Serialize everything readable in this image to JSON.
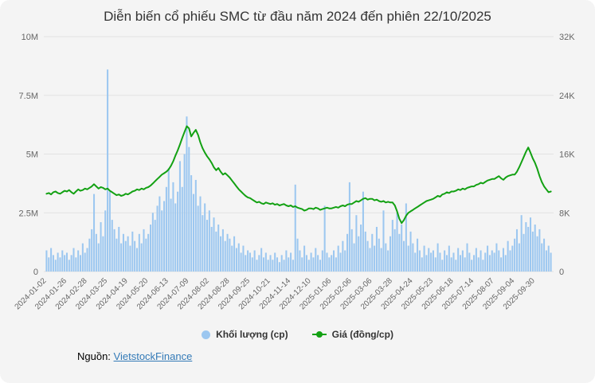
{
  "title": "Diễn biến cổ phiếu SMC từ đầu năm 2024 đến phiên 22/10/2025",
  "source": {
    "prefix": "Nguồn:",
    "link_text": "VietstockFinance"
  },
  "colors": {
    "card_bg": "#f4f4f4",
    "grid": "#e2e2e2",
    "axis_text": "#666666",
    "title_text": "#333333",
    "volume": "#9cc7f0",
    "price": "#13a113",
    "link": "#337ab7"
  },
  "chart_data": {
    "type": "combo",
    "title": "Diễn biến cổ phiếu SMC từ đầu năm 2024 đến phiên 22/10/2025",
    "legend_position": "bottom",
    "grid": true,
    "tick_every": 9,
    "x_tick_labels": [
      "2024-01-02",
      "2024-01-26",
      "2024-02-28",
      "2024-03-25",
      "2024-04-19",
      "2024-05-20",
      "2024-06-13",
      "2024-07-09",
      "2024-08-02",
      "2024-08-28",
      "2024-09-25",
      "2024-10-21",
      "2024-11-14",
      "2024-12-10",
      "2025-01-06",
      "2025-02-06",
      "2025-03-06",
      "2025-03-28",
      "2025-04-24",
      "2025-05-23",
      "2025-06-18",
      "2025-07-14",
      "2025-08-07",
      "2025-09-04",
      "2025-09-30"
    ],
    "left_axis": {
      "unit": "M",
      "max": 10,
      "tick_labels": [
        "0",
        "2.5M",
        "5M",
        "7.5M",
        "10M"
      ]
    },
    "right_axis": {
      "unit": "K",
      "max": 32,
      "tick_labels": [
        "0",
        "8K",
        "16K",
        "24K",
        "32K"
      ]
    },
    "series": [
      {
        "name": "Khối lượng (cp)",
        "type": "bar",
        "axis": "left",
        "unit": "M cp",
        "color": "#9cc7f0",
        "values": [
          0.9,
          0.6,
          1.0,
          0.7,
          0.5,
          0.8,
          0.6,
          0.9,
          0.7,
          0.8,
          0.5,
          0.7,
          1.0,
          0.6,
          0.9,
          0.7,
          1.2,
          0.8,
          1.0,
          1.4,
          1.8,
          3.3,
          1.6,
          1.2,
          2.1,
          1.5,
          2.6,
          8.6,
          3.4,
          2.2,
          1.8,
          1.4,
          1.9,
          1.2,
          1.6,
          1.3,
          1.5,
          1.1,
          1.7,
          1.3,
          1.0,
          1.6,
          1.2,
          1.8,
          1.4,
          1.6,
          2.0,
          2.5,
          2.2,
          2.8,
          3.2,
          2.6,
          3.0,
          3.6,
          4.4,
          3.1,
          3.8,
          2.9,
          3.4,
          4.7,
          3.6,
          5.0,
          6.6,
          5.3,
          4.1,
          3.3,
          3.9,
          2.8,
          3.2,
          2.4,
          2.9,
          2.2,
          2.6,
          1.9,
          2.3,
          1.7,
          2.0,
          1.5,
          1.8,
          1.3,
          1.6,
          1.4,
          1.1,
          1.5,
          1.0,
          1.2,
          0.8,
          1.1,
          0.7,
          0.9,
          0.8,
          0.6,
          0.9,
          0.5,
          0.7,
          1.0,
          0.6,
          0.8,
          0.5,
          0.7,
          0.5,
          0.8,
          0.6,
          0.4,
          0.7,
          0.5,
          0.9,
          0.6,
          0.8,
          0.5,
          3.7,
          1.4,
          0.9,
          0.6,
          1.1,
          0.7,
          0.5,
          0.8,
          0.6,
          1.0,
          0.7,
          0.5,
          0.9,
          2.8,
          0.8,
          0.6,
          0.7,
          0.9,
          0.6,
          1.1,
          0.8,
          1.3,
          0.9,
          1.6,
          3.8,
          1.8,
          1.2,
          2.4,
          1.5,
          2.0,
          3.4,
          1.7,
          1.3,
          1.0,
          1.6,
          1.1,
          1.9,
          1.4,
          1.0,
          2.6,
          1.2,
          0.9,
          1.5,
          2.2,
          1.8,
          2.5,
          1.6,
          2.0,
          1.3,
          2.9,
          1.1,
          1.7,
          1.2,
          0.8,
          1.4,
          0.9,
          0.6,
          1.1,
          0.7,
          1.0,
          0.8,
          0.9,
          0.6,
          1.2,
          0.8,
          0.5,
          0.9,
          0.7,
          1.1,
          0.6,
          0.8,
          0.5,
          1.0,
          0.7,
          0.9,
          0.6,
          1.2,
          0.8,
          0.5,
          0.7,
          1.0,
          0.6,
          0.9,
          0.5,
          0.8,
          1.1,
          0.7,
          0.9,
          0.8,
          1.2,
          0.9,
          0.6,
          1.0,
          0.7,
          1.3,
          0.9,
          1.1,
          1.4,
          1.8,
          1.2,
          2.4,
          1.6,
          2.1,
          1.9,
          2.3,
          1.7,
          2.0,
          1.5,
          1.8,
          1.2,
          1.4,
          0.9,
          1.1,
          0.8
        ]
      },
      {
        "name": "Giá (đồng/cp)",
        "type": "line",
        "axis": "right",
        "unit": "K đồng/cp",
        "color": "#13a113",
        "values": [
          10.6,
          10.7,
          10.5,
          10.8,
          10.9,
          10.7,
          10.6,
          10.8,
          11.0,
          10.9,
          11.1,
          10.8,
          10.6,
          10.9,
          11.2,
          11.0,
          11.1,
          11.3,
          11.2,
          11.4,
          11.6,
          11.9,
          11.6,
          11.3,
          11.5,
          11.4,
          11.2,
          11.3,
          11.0,
          10.8,
          10.6,
          10.4,
          10.5,
          10.3,
          10.4,
          10.6,
          10.5,
          10.7,
          10.9,
          11.0,
          11.2,
          11.1,
          11.3,
          11.2,
          11.4,
          11.5,
          11.7,
          12.0,
          12.3,
          12.6,
          12.9,
          13.2,
          13.4,
          13.6,
          13.9,
          14.4,
          15.0,
          15.8,
          16.5,
          17.3,
          18.2,
          19.0,
          19.8,
          19.5,
          18.4,
          18.9,
          19.3,
          18.6,
          17.6,
          16.8,
          16.2,
          15.7,
          15.3,
          14.8,
          14.2,
          13.8,
          14.1,
          13.6,
          13.2,
          13.4,
          13.1,
          12.8,
          12.4,
          12.0,
          11.6,
          11.2,
          10.9,
          10.6,
          10.3,
          10.1,
          10.0,
          9.8,
          9.6,
          9.4,
          9.5,
          9.3,
          9.2,
          9.4,
          9.3,
          9.2,
          9.3,
          9.1,
          9.2,
          9.0,
          9.1,
          9.2,
          9.0,
          8.9,
          9.0,
          8.8,
          8.9,
          8.7,
          8.6,
          8.5,
          8.3,
          8.4,
          8.6,
          8.6,
          8.5,
          8.7,
          8.6,
          8.4,
          8.5,
          8.6,
          8.7,
          8.6,
          8.6,
          8.7,
          8.8,
          8.7,
          8.9,
          9.0,
          8.9,
          9.1,
          9.2,
          9.2,
          9.4,
          9.6,
          9.5,
          9.7,
          9.9,
          10.0,
          9.8,
          9.9,
          9.9,
          9.7,
          9.8,
          9.6,
          9.5,
          9.6,
          9.4,
          9.5,
          9.4,
          9.4,
          9.0,
          8.2,
          7.2,
          6.6,
          7.0,
          7.6,
          8.0,
          8.2,
          8.4,
          8.6,
          8.8,
          9.0,
          9.2,
          9.4,
          9.6,
          9.7,
          9.8,
          9.9,
          10.1,
          10.3,
          10.2,
          10.5,
          10.6,
          10.8,
          10.7,
          10.9,
          10.9,
          11.0,
          11.2,
          11.1,
          11.3,
          11.2,
          11.4,
          11.5,
          11.6,
          11.6,
          11.8,
          11.9,
          12.1,
          12.0,
          12.2,
          12.4,
          12.5,
          12.6,
          12.6,
          12.8,
          13.0,
          12.7,
          12.5,
          12.8,
          13.0,
          13.1,
          13.2,
          13.2,
          13.6,
          14.2,
          14.9,
          15.6,
          16.3,
          16.9,
          16.2,
          15.4,
          14.8,
          14.0,
          13.0,
          12.2,
          11.6,
          11.2,
          10.8,
          10.9
        ]
      }
    ]
  }
}
